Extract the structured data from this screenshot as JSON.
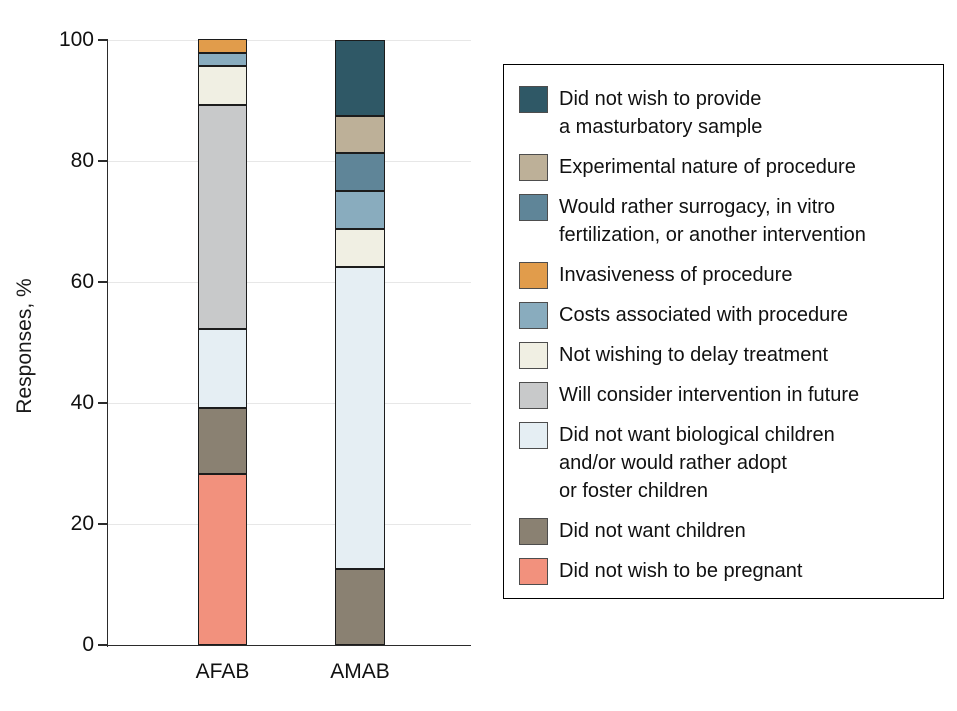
{
  "chart_data": {
    "type": "bar",
    "stacked": true,
    "title": "",
    "ylabel": "Responses, %",
    "xlabel": "",
    "ylim": [
      0,
      100
    ],
    "yticks": [
      0,
      20,
      40,
      60,
      80,
      100
    ],
    "grid": "horizontal",
    "legend_position": "right",
    "categories": [
      "AFAB",
      "AMAB"
    ],
    "series": [
      {
        "name": "Did not wish to provide a masturbatory sample",
        "color": "#2F5866",
        "values": [
          0,
          12.5
        ]
      },
      {
        "name": "Experimental nature of procedure",
        "color": "#BDB098",
        "values": [
          0,
          6.25
        ]
      },
      {
        "name": "Would rather surrogacy, in vitro fertilization, or another intervention",
        "color": "#5F8598",
        "values": [
          0,
          6.25
        ]
      },
      {
        "name": "Invasiveness of procedure",
        "color": "#E19C4B",
        "values": [
          2.2,
          0
        ]
      },
      {
        "name": "Costs associated with procedure",
        "color": "#89ACBE",
        "values": [
          2.2,
          6.25
        ]
      },
      {
        "name": "Not wishing to delay treatment",
        "color": "#F0EFE3",
        "values": [
          6.5,
          6.25
        ]
      },
      {
        "name": "Will consider intervention in future",
        "color": "#C8C9CA",
        "values": [
          37.0,
          0
        ]
      },
      {
        "name": "Did not want biological children and/or would rather adopt or foster children",
        "color": "#E5EEF3",
        "values": [
          13.0,
          50.0
        ]
      },
      {
        "name": "Did not want children",
        "color": "#8A8172",
        "values": [
          10.9,
          12.5
        ]
      },
      {
        "name": "Did not wish to be pregnant",
        "color": "#F2917D",
        "values": [
          28.3,
          0
        ]
      }
    ],
    "legend": [
      {
        "label": "Did not wish to provide\na masturbatory sample",
        "color": "#2F5866"
      },
      {
        "label": "Experimental nature of procedure",
        "color": "#BDB098"
      },
      {
        "label": "Would rather surrogacy, in vitro\nfertilization, or another intervention",
        "color": "#5F8598"
      },
      {
        "label": "Invasiveness of procedure",
        "color": "#E19C4B"
      },
      {
        "label": "Costs associated with procedure",
        "color": "#89ACBE"
      },
      {
        "label": "Not wishing to delay treatment",
        "color": "#F0EFE3"
      },
      {
        "label": "Will consider intervention in future",
        "color": "#C8C9CA"
      },
      {
        "label": "Did not want biological children\nand/or would rather adopt\nor foster children",
        "color": "#E5EEF3"
      },
      {
        "label": "Did not want children",
        "color": "#8A8172"
      },
      {
        "label": "Did not wish to be pregnant",
        "color": "#F2917D"
      }
    ]
  }
}
